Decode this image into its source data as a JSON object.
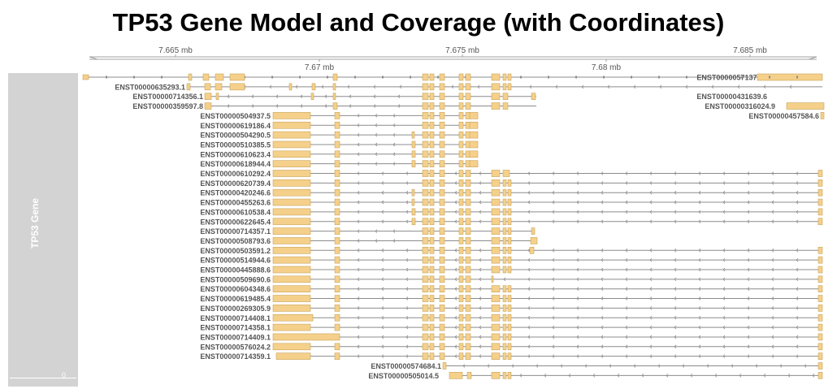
{
  "title": "TP53 Gene Model and Coverage (with Coordinates)",
  "panel": {
    "label": "TP53 Gene",
    "axis_zero": "0",
    "background": "#d3d3d3"
  },
  "axis": {
    "unit": "mb",
    "top_ticks": [
      "7.665 mb",
      "7.675 mb",
      "7.685 mb"
    ],
    "bottom_ticks": [
      "7.67 mb",
      "7.68 mb"
    ]
  },
  "colors": {
    "exon_fill": "#f5d08a",
    "exon_stroke": "#c9a45a",
    "intron": "#8c8c8c",
    "label": "#555555"
  },
  "transcripts": [
    {
      "id": "ENST00000635293.1",
      "row": 1
    },
    {
      "id": "ENST00000714356.1",
      "row": 2
    },
    {
      "id": "ENST00000359597.8",
      "row": 3
    },
    {
      "id": "ENST00000504937.5",
      "row": 4
    },
    {
      "id": "ENST00000619186.4",
      "row": 5
    },
    {
      "id": "ENST00000504290.5",
      "row": 6
    },
    {
      "id": "ENST00000510385.5",
      "row": 7
    },
    {
      "id": "ENST00000610623.4",
      "row": 8
    },
    {
      "id": "ENST00000618944.4",
      "row": 9
    },
    {
      "id": "ENST00000610292.4",
      "row": 10
    },
    {
      "id": "ENST00000620739.4",
      "row": 11
    },
    {
      "id": "ENST00000420246.6",
      "row": 12
    },
    {
      "id": "ENST00000455263.6",
      "row": 13
    },
    {
      "id": "ENST00000610538.4",
      "row": 14
    },
    {
      "id": "ENST00000622645.4",
      "row": 15
    },
    {
      "id": "ENST00000714357.1",
      "row": 16
    },
    {
      "id": "ENST00000508793.6",
      "row": 17
    },
    {
      "id": "ENST00000503591.2",
      "row": 18
    },
    {
      "id": "ENST00000514944.6",
      "row": 19
    },
    {
      "id": "ENST00000445888.6",
      "row": 20
    },
    {
      "id": "ENST00000509690.6",
      "row": 21
    },
    {
      "id": "ENST00000604348.6",
      "row": 22
    },
    {
      "id": "ENST00000619485.4",
      "row": 23
    },
    {
      "id": "ENST00000269305.9",
      "row": 24
    },
    {
      "id": "ENST00000714408.1",
      "row": 25
    },
    {
      "id": "ENST00000714358.1",
      "row": 26
    },
    {
      "id": "ENST00000714409.1",
      "row": 27
    },
    {
      "id": "ENST00000576024.2",
      "row": 28
    },
    {
      "id": "ENST00000714359.1",
      "row": 29
    },
    {
      "id": "ENST00000574684.1",
      "row": 30
    },
    {
      "id": "ENST00000505014.5",
      "row": 31
    },
    {
      "id": "ENST00000571370.2",
      "row": 0
    },
    {
      "id": "ENST00000431639.6",
      "row": 2
    },
    {
      "id": "ENST00000316024.9",
      "row": 3
    },
    {
      "id": "ENST00000457584.6",
      "row": 4
    }
  ]
}
